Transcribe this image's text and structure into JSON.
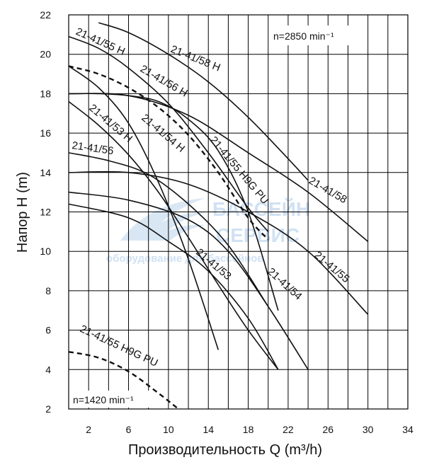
{
  "chart_data": {
    "type": "line",
    "xlabel": "Производительность Q (m³/h)",
    "ylabel": "Напор H (m)",
    "xlim": [
      0,
      34
    ],
    "ylim": [
      2,
      22
    ],
    "x_ticks": [
      "2",
      "6",
      "10",
      "14",
      "18",
      "22",
      "26",
      "30",
      "34"
    ],
    "y_ticks": [
      "2",
      "4",
      "6",
      "8",
      "10",
      "12",
      "14",
      "16",
      "18",
      "20",
      "22"
    ],
    "grid": true,
    "annotations": [
      {
        "text": "n=2850 min⁻¹"
      },
      {
        "text": "n=1420 min⁻¹"
      }
    ],
    "watermark": [
      "БАССЕЙН",
      "СЕРВИС",
      "оборудование для бассейнов"
    ],
    "series": [
      {
        "name": "21-41/58 H",
        "x": [
          3,
          6,
          10,
          14,
          18,
          22,
          24
        ],
        "y": [
          21.6,
          21.1,
          20.0,
          18.6,
          16.8,
          14.7,
          13.6
        ]
      },
      {
        "name": "21-41/55 H",
        "x": [
          0,
          3,
          6,
          10,
          14,
          18,
          20
        ],
        "y": [
          20.9,
          20.3,
          19.3,
          17.5,
          15.0,
          12.2,
          11.0
        ]
      },
      {
        "name": "21-41/56 H",
        "x": [
          0,
          3,
          6,
          9,
          12,
          15,
          18,
          21
        ],
        "y": [
          18.0,
          18.0,
          17.9,
          17.6,
          16.7,
          15.1,
          12.0,
          7.0
        ]
      },
      {
        "name": "21-41/55 H9G PU",
        "x": [
          0,
          3,
          6,
          9,
          12,
          15,
          18,
          20
        ],
        "y": [
          19.4,
          19.0,
          18.3,
          17.3,
          15.9,
          14.0,
          11.7,
          10.6
        ]
      },
      {
        "name": "21-41/54 H",
        "x": [
          0,
          3,
          6,
          9,
          12,
          15,
          18,
          21
        ],
        "y": [
          17.6,
          16.4,
          14.9,
          13.0,
          10.7,
          8.3,
          6.0,
          4.0
        ]
      },
      {
        "name": "21-41/53 H",
        "x": [
          0,
          3,
          6,
          9,
          12,
          15
        ],
        "y": [
          19.4,
          18.3,
          16.5,
          13.5,
          9.6,
          5.0
        ]
      },
      {
        "name": "21-41/56",
        "x": [
          0,
          4,
          8,
          12,
          16,
          20
        ],
        "y": [
          15.0,
          14.6,
          13.9,
          12.4,
          10.3,
          7.2
        ]
      },
      {
        "name": "21-41/58",
        "x": [
          0,
          6,
          12,
          18,
          24,
          30
        ],
        "y": [
          18.0,
          17.9,
          16.9,
          15.0,
          13.0,
          10.5
        ]
      },
      {
        "name": "21-41/55",
        "x": [
          0,
          6,
          12,
          18,
          24,
          30
        ],
        "y": [
          14.0,
          14.0,
          13.4,
          12.0,
          10.0,
          6.8
        ]
      },
      {
        "name": "21-41/54",
        "x": [
          0,
          6,
          12,
          16,
          20,
          24
        ],
        "y": [
          13.0,
          12.6,
          11.6,
          10.0,
          7.2,
          4.0
        ]
      },
      {
        "name": "21-41/53",
        "x": [
          0,
          6,
          10,
          14,
          18,
          21
        ],
        "y": [
          12.4,
          11.7,
          10.5,
          9.0,
          6.6,
          4.0
        ]
      },
      {
        "name": "21-41/55 H9G PU (n=1420)",
        "x": [
          0,
          3,
          6,
          9,
          11
        ],
        "y": [
          4.9,
          4.6,
          3.9,
          2.8,
          2.0
        ]
      }
    ]
  },
  "colors": {
    "line": "#111111",
    "grid": "#000000",
    "watermark": "#c8dcf2"
  }
}
